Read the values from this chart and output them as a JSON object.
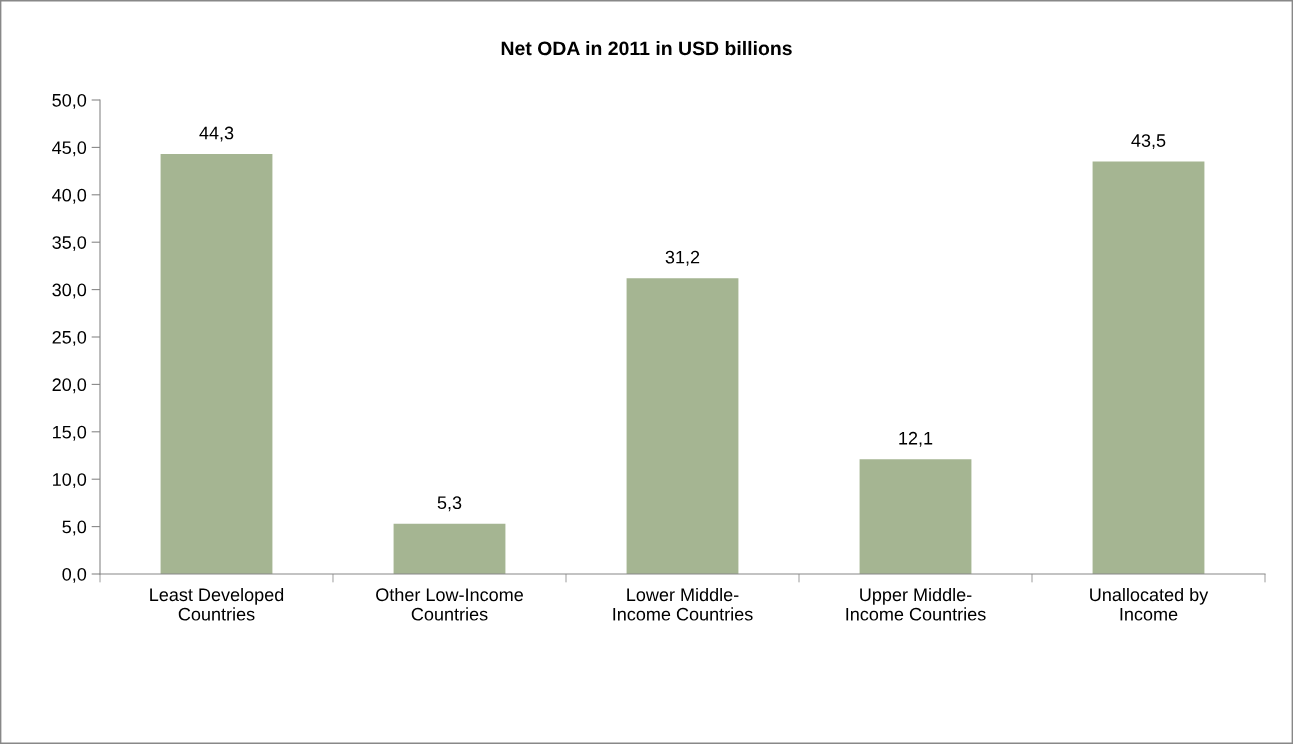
{
  "chart_data": {
    "type": "bar",
    "title": "Net ODA in 2011 in USD billions",
    "categories": [
      "Least Developed\nCountries",
      "Other Low-Income\nCountries",
      "Lower Middle-\nIncome Countries",
      "Upper Middle-\nIncome Countries",
      "Unallocated by\nIncome"
    ],
    "values": [
      44.3,
      5.3,
      31.2,
      12.1,
      43.5
    ],
    "value_labels": [
      "44,3",
      "5,3",
      "31,2",
      "12,1",
      "43,5"
    ],
    "color": "#a5b592",
    "ylim": [
      0,
      50
    ],
    "yticks": [
      {
        "value": 0,
        "label": "0,0"
      },
      {
        "value": 5,
        "label": "5,0"
      },
      {
        "value": 10,
        "label": "10,0"
      },
      {
        "value": 15,
        "label": "15,0"
      },
      {
        "value": 20,
        "label": "20,0"
      },
      {
        "value": 25,
        "label": "25,0"
      },
      {
        "value": 30,
        "label": "30,0"
      },
      {
        "value": 35,
        "label": "35,0"
      },
      {
        "value": 40,
        "label": "40,0"
      },
      {
        "value": 45,
        "label": "45,0"
      },
      {
        "value": 50,
        "label": "50,0"
      }
    ],
    "grid": false
  }
}
